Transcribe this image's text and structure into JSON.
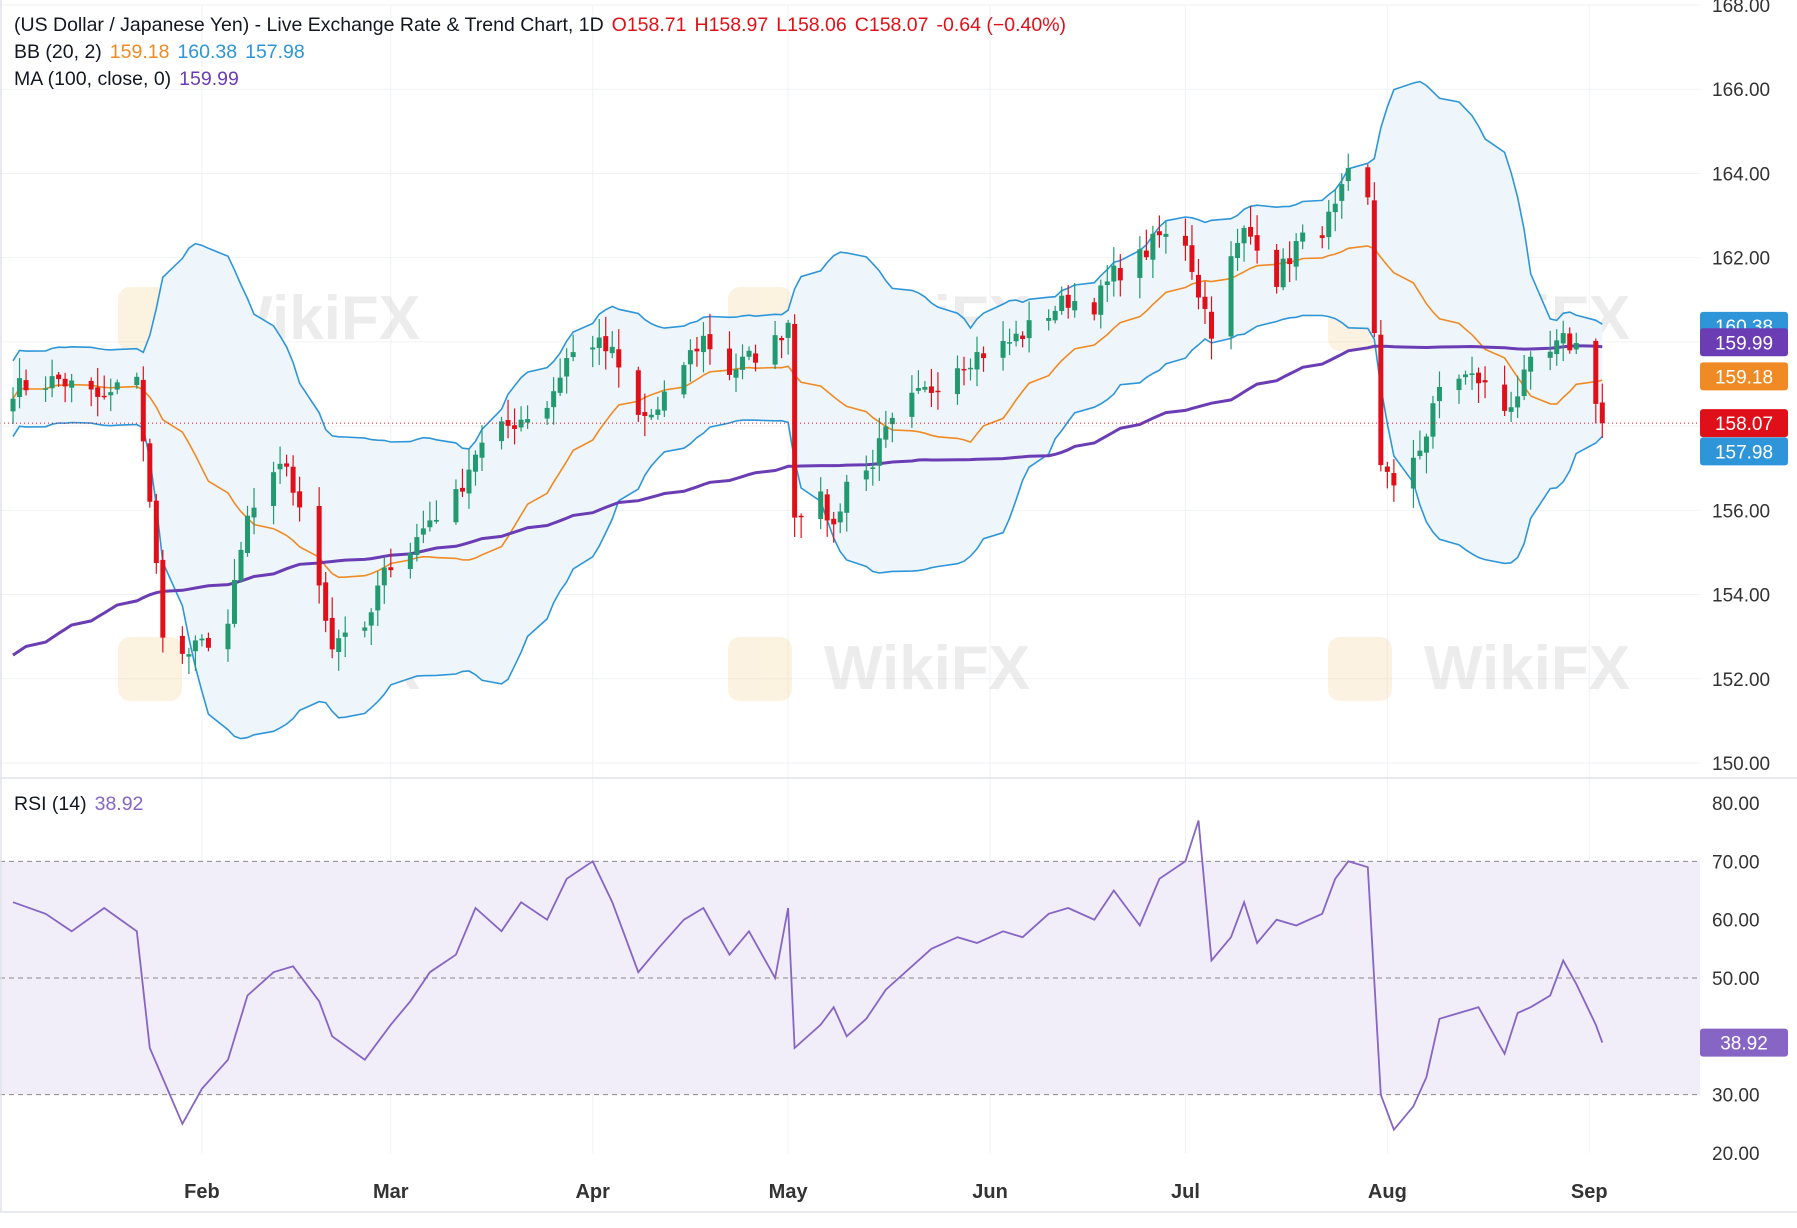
{
  "header": {
    "title": "(US Dollar / Japanese Yen) - Live Exchange Rate & Trend Chart, 1D",
    "ohlc": {
      "o_label": "O",
      "o": "158.71",
      "h_label": "H",
      "h": "158.97",
      "l_label": "L",
      "l": "158.06",
      "c_label": "C",
      "c": "158.07",
      "change": "-0.64 (−0.40%)"
    },
    "bb": {
      "label": "BB (20, 2)",
      "basis": "159.18",
      "upper": "160.38",
      "lower": "157.98"
    },
    "ma": {
      "label": "MA (100, close, 0)",
      "value": "159.99"
    },
    "rsi": {
      "label": "RSI (14)",
      "value": "38.92"
    }
  },
  "colors": {
    "up": "#22996e",
    "down": "#e0101a",
    "bb_basis": "#f08a24",
    "bb_band": "#2e96d8",
    "bb_fill": "#eef6fc",
    "ma": "#6a3db5",
    "rsi_line": "#8765c4",
    "rsi_fill": "#f1edf9",
    "grid": "#f0f2f5",
    "axis_text": "#333333"
  },
  "price_labels": {
    "bb_upper": "160.38",
    "ma": "159.99",
    "bb_basis": "159.18",
    "last": "158.07",
    "bb_lower": "157.98"
  },
  "rsi_label": "38.92",
  "watermark": "WikiFX",
  "chart_data": [
    {
      "type": "candlestick",
      "ylim": [
        150,
        168
      ],
      "y_ticks": [
        "168.00",
        "166.00",
        "164.00",
        "162.00",
        "160.00",
        "158.00",
        "156.00",
        "154.00",
        "152.00",
        "150.00"
      ],
      "x_ticks": [
        "Feb",
        "Mar",
        "Apr",
        "May",
        "Jun",
        "Jul",
        "Aug",
        "Sep"
      ],
      "last_close": 158.07,
      "series_points": [
        [
          "2024-01-03",
          158.9
        ],
        [
          "2024-01-10",
          159.1
        ],
        [
          "2024-01-17",
          158.6
        ],
        [
          "2024-01-22",
          159.3
        ],
        [
          "2024-01-24",
          156.1
        ],
        [
          "2024-01-26",
          153.2
        ],
        [
          "2024-01-29",
          152.5
        ],
        [
          "2024-02-01",
          152.8
        ],
        [
          "2024-02-05",
          153.3
        ],
        [
          "2024-02-08",
          155.8
        ],
        [
          "2024-02-12",
          156.7
        ],
        [
          "2024-02-14",
          157.1
        ],
        [
          "2024-02-16",
          155.9
        ],
        [
          "2024-02-19",
          154.3
        ],
        [
          "2024-02-21",
          152.8
        ],
        [
          "2024-02-23",
          153.2
        ],
        [
          "2024-02-26",
          153.0
        ],
        [
          "2024-02-28",
          154.1
        ],
        [
          "2024-03-01",
          154.8
        ],
        [
          "2024-03-04",
          155.1
        ],
        [
          "2024-03-07",
          155.8
        ],
        [
          "2024-03-11",
          156.3
        ],
        [
          "2024-03-14",
          157.4
        ],
        [
          "2024-03-18",
          157.9
        ],
        [
          "2024-03-21",
          158.2
        ],
        [
          "2024-03-25",
          158.5
        ],
        [
          "2024-03-28",
          159.6
        ],
        [
          "2024-04-01",
          160.0
        ],
        [
          "2024-04-04",
          159.7
        ],
        [
          "2024-04-08",
          158.2
        ],
        [
          "2024-04-11",
          158.3
        ],
        [
          "2024-04-15",
          159.5
        ],
        [
          "2024-04-18",
          160.1
        ],
        [
          "2024-04-22",
          159.3
        ],
        [
          "2024-04-25",
          159.6
        ],
        [
          "2024-04-29",
          160.0
        ],
        [
          "2024-05-01",
          160.5
        ],
        [
          "2024-05-02",
          156.0
        ],
        [
          "2024-05-06",
          156.2
        ],
        [
          "2024-05-08",
          155.6
        ],
        [
          "2024-05-10",
          156.7
        ],
        [
          "2024-05-13",
          156.9
        ],
        [
          "2024-05-16",
          157.8
        ],
        [
          "2024-05-20",
          158.6
        ],
        [
          "2024-05-23",
          158.9
        ],
        [
          "2024-05-27",
          159.5
        ],
        [
          "2024-05-30",
          159.7
        ],
        [
          "2024-06-03",
          159.9
        ],
        [
          "2024-06-06",
          160.2
        ],
        [
          "2024-06-10",
          160.7
        ],
        [
          "2024-06-13",
          161.0
        ],
        [
          "2024-06-17",
          160.9
        ],
        [
          "2024-06-20",
          161.6
        ],
        [
          "2024-06-24",
          162.0
        ],
        [
          "2024-06-27",
          162.5
        ],
        [
          "2024-07-01",
          162.4
        ],
        [
          "2024-07-03",
          161.2
        ],
        [
          "2024-07-05",
          160.3
        ],
        [
          "2024-07-08",
          161.9
        ],
        [
          "2024-07-10",
          162.6
        ],
        [
          "2024-07-12",
          162.4
        ],
        [
          "2024-07-15",
          161.5
        ],
        [
          "2024-07-18",
          162.3
        ],
        [
          "2024-07-22",
          162.7
        ],
        [
          "2024-07-24",
          163.1
        ],
        [
          "2024-07-26",
          163.9
        ],
        [
          "2024-07-29",
          163.3
        ],
        [
          "2024-07-31",
          157.2
        ],
        [
          "2024-08-02",
          156.4
        ],
        [
          "2024-08-05",
          157.3
        ],
        [
          "2024-08-07",
          157.8
        ],
        [
          "2024-08-09",
          158.9
        ],
        [
          "2024-08-12",
          159.2
        ],
        [
          "2024-08-15",
          159.1
        ],
        [
          "2024-08-19",
          158.4
        ],
        [
          "2024-08-21",
          158.8
        ],
        [
          "2024-08-23",
          159.4
        ],
        [
          "2024-08-26",
          159.7
        ],
        [
          "2024-08-28",
          160.0
        ],
        [
          "2024-08-30",
          159.9
        ],
        [
          "2024-09-02",
          158.71
        ],
        [
          "2024-09-03",
          158.07
        ]
      ]
    },
    {
      "type": "line",
      "series": [
        {
          "name": "RSI (14)",
          "values": "see rsi_points"
        }
      ],
      "ylim": [
        20,
        80
      ],
      "y_ticks": [
        "80.00",
        "70.00",
        "60.00",
        "50.00",
        "40.00",
        "30.00",
        "20.00"
      ],
      "band": [
        30,
        70
      ],
      "rsi_points": [
        [
          "2024-01-03",
          63
        ],
        [
          "2024-01-08",
          61
        ],
        [
          "2024-01-12",
          58
        ],
        [
          "2024-01-17",
          62
        ],
        [
          "2024-01-22",
          58
        ],
        [
          "2024-01-24",
          38
        ],
        [
          "2024-01-29",
          25
        ],
        [
          "2024-02-01",
          31
        ],
        [
          "2024-02-05",
          36
        ],
        [
          "2024-02-08",
          47
        ],
        [
          "2024-02-12",
          51
        ],
        [
          "2024-02-15",
          52
        ],
        [
          "2024-02-19",
          46
        ],
        [
          "2024-02-21",
          40
        ],
        [
          "2024-02-26",
          36
        ],
        [
          "2024-03-01",
          42
        ],
        [
          "2024-03-04",
          46
        ],
        [
          "2024-03-07",
          51
        ],
        [
          "2024-03-11",
          54
        ],
        [
          "2024-03-14",
          62
        ],
        [
          "2024-03-18",
          58
        ],
        [
          "2024-03-21",
          63
        ],
        [
          "2024-03-25",
          60
        ],
        [
          "2024-03-28",
          67
        ],
        [
          "2024-04-01",
          70
        ],
        [
          "2024-04-04",
          63
        ],
        [
          "2024-04-08",
          51
        ],
        [
          "2024-04-11",
          55
        ],
        [
          "2024-04-15",
          60
        ],
        [
          "2024-04-18",
          62
        ],
        [
          "2024-04-22",
          54
        ],
        [
          "2024-04-25",
          58
        ],
        [
          "2024-04-29",
          50
        ],
        [
          "2024-05-01",
          62
        ],
        [
          "2024-05-02",
          38
        ],
        [
          "2024-05-06",
          42
        ],
        [
          "2024-05-08",
          45
        ],
        [
          "2024-05-10",
          40
        ],
        [
          "2024-05-13",
          43
        ],
        [
          "2024-05-16",
          48
        ],
        [
          "2024-05-20",
          52
        ],
        [
          "2024-05-23",
          55
        ],
        [
          "2024-05-27",
          57
        ],
        [
          "2024-05-30",
          56
        ],
        [
          "2024-06-03",
          58
        ],
        [
          "2024-06-06",
          57
        ],
        [
          "2024-06-10",
          61
        ],
        [
          "2024-06-13",
          62
        ],
        [
          "2024-06-17",
          60
        ],
        [
          "2024-06-20",
          65
        ],
        [
          "2024-06-24",
          59
        ],
        [
          "2024-06-27",
          67
        ],
        [
          "2024-07-01",
          70
        ],
        [
          "2024-07-03",
          77
        ],
        [
          "2024-07-05",
          53
        ],
        [
          "2024-07-08",
          57
        ],
        [
          "2024-07-10",
          63
        ],
        [
          "2024-07-12",
          56
        ],
        [
          "2024-07-15",
          60
        ],
        [
          "2024-07-18",
          59
        ],
        [
          "2024-07-22",
          61
        ],
        [
          "2024-07-24",
          67
        ],
        [
          "2024-07-26",
          70
        ],
        [
          "2024-07-29",
          69
        ],
        [
          "2024-07-31",
          30
        ],
        [
          "2024-08-02",
          24
        ],
        [
          "2024-08-05",
          28
        ],
        [
          "2024-08-07",
          33
        ],
        [
          "2024-08-09",
          43
        ],
        [
          "2024-08-12",
          44
        ],
        [
          "2024-08-15",
          45
        ],
        [
          "2024-08-19",
          37
        ],
        [
          "2024-08-21",
          44
        ],
        [
          "2024-08-23",
          45
        ],
        [
          "2024-08-26",
          47
        ],
        [
          "2024-08-28",
          53
        ],
        [
          "2024-08-30",
          49
        ],
        [
          "2024-09-02",
          42
        ],
        [
          "2024-09-03",
          38.92
        ]
      ]
    }
  ]
}
